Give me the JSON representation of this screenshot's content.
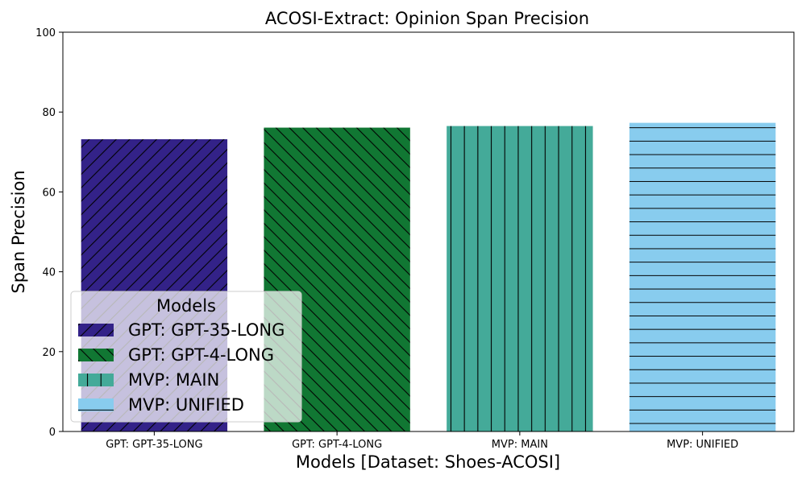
{
  "chart_data": {
    "type": "bar",
    "title": "ACOSI-Extract: Opinion Span Precision",
    "xlabel": "Models [Dataset: Shoes-ACOSI]",
    "ylabel": "Span Precision",
    "ylim": [
      0,
      100
    ],
    "yticks": [
      "0",
      "20",
      "40",
      "60",
      "80",
      "100"
    ],
    "categories": [
      "GPT: GPT-35-LONG",
      "GPT: GPT-4-LONG",
      "MVP: MAIN",
      "MVP: UNIFIED"
    ],
    "values": [
      73.2,
      76.1,
      76.5,
      77.3
    ],
    "colors": [
      "#332288",
      "#117733",
      "#44AA99",
      "#88CCEE"
    ],
    "hatches": [
      "forward-diagonal",
      "backward-diagonal",
      "vertical",
      "horizontal"
    ],
    "legend": {
      "title": "Models",
      "position": "lower-left",
      "entries": [
        "GPT: GPT-35-LONG",
        "GPT: GPT-4-LONG",
        "MVP: MAIN",
        "MVP: UNIFIED"
      ]
    },
    "grid": false
  }
}
